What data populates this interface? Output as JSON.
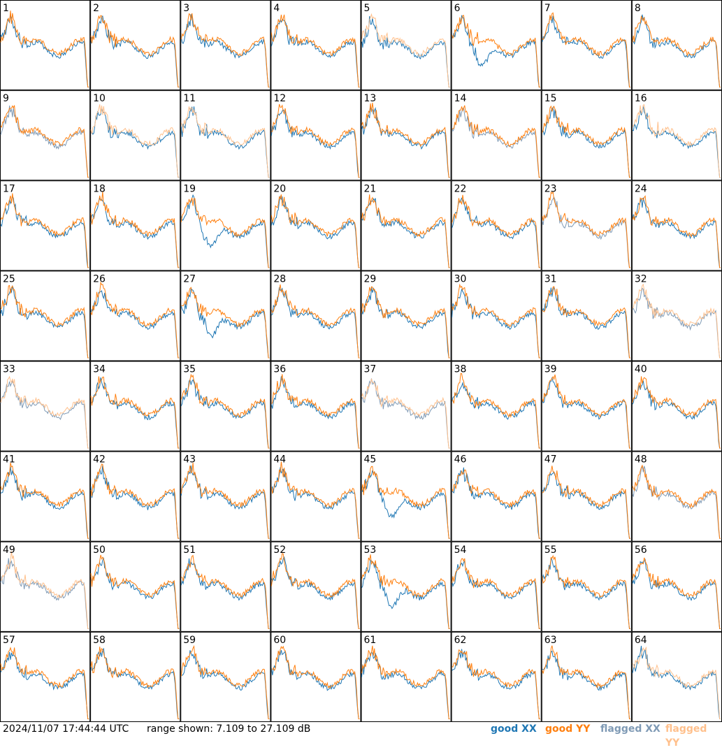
{
  "footer": {
    "timestamp": "2024/11/07 17:44:44 UTC",
    "range_label": "range shown: 7.109 to 27.109 dB"
  },
  "legend": [
    {
      "label": "good XX",
      "color": "#1f77b4"
    },
    {
      "label": "good YY",
      "color": "#ff7f0e"
    },
    {
      "label": "flagged XX",
      "color": "#7f9ab5"
    },
    {
      "label": "flagged YY",
      "color": "#ffc08c"
    }
  ],
  "chart_data": {
    "type": "line",
    "grid": {
      "rows": 8,
      "cols": 8
    },
    "ylim": [
      7.109,
      27.109
    ],
    "series_colors": {
      "good_xx": "#1f77b4",
      "good_yy": "#ff7f0e",
      "flagged_xx": "#7f9ab5",
      "flagged_yy": "#ffc08c"
    },
    "panels": [
      {
        "label": "1",
        "x": "good",
        "y": "good"
      },
      {
        "label": "2",
        "x": "good",
        "y": "good"
      },
      {
        "label": "3",
        "x": "good",
        "y": "good"
      },
      {
        "label": "4",
        "x": "good",
        "y": "good"
      },
      {
        "label": "5",
        "x": "good",
        "y": "flagged"
      },
      {
        "label": "6",
        "x": "good",
        "y": "good"
      },
      {
        "label": "7",
        "x": "good",
        "y": "good"
      },
      {
        "label": "8",
        "x": "good",
        "y": "good"
      },
      {
        "label": "9",
        "x": "flagged",
        "y": "good"
      },
      {
        "label": "10",
        "x": "good",
        "y": "flagged"
      },
      {
        "label": "11",
        "x": "good",
        "y": "flagged"
      },
      {
        "label": "12",
        "x": "good",
        "y": "good"
      },
      {
        "label": "13",
        "x": "good",
        "y": "good"
      },
      {
        "label": "14",
        "x": "flagged",
        "y": "good"
      },
      {
        "label": "15",
        "x": "good",
        "y": "good"
      },
      {
        "label": "16",
        "x": "good",
        "y": "flagged"
      },
      {
        "label": "17",
        "x": "good",
        "y": "good"
      },
      {
        "label": "18",
        "x": "good",
        "y": "good"
      },
      {
        "label": "19",
        "x": "good",
        "y": "good"
      },
      {
        "label": "20",
        "x": "good",
        "y": "good"
      },
      {
        "label": "21",
        "x": "good",
        "y": "good"
      },
      {
        "label": "22",
        "x": "good",
        "y": "good"
      },
      {
        "label": "23",
        "x": "flagged",
        "y": "good"
      },
      {
        "label": "24",
        "x": "good",
        "y": "good"
      },
      {
        "label": "25",
        "x": "good",
        "y": "good"
      },
      {
        "label": "26",
        "x": "good",
        "y": "good"
      },
      {
        "label": "27",
        "x": "good",
        "y": "good"
      },
      {
        "label": "28",
        "x": "good",
        "y": "good"
      },
      {
        "label": "29",
        "x": "good",
        "y": "good"
      },
      {
        "label": "30",
        "x": "good",
        "y": "good"
      },
      {
        "label": "31",
        "x": "good",
        "y": "good"
      },
      {
        "label": "32",
        "x": "flagged",
        "y": "flagged"
      },
      {
        "label": "33",
        "x": "flagged",
        "y": "flagged"
      },
      {
        "label": "34",
        "x": "good",
        "y": "good"
      },
      {
        "label": "35",
        "x": "good",
        "y": "good"
      },
      {
        "label": "36",
        "x": "good",
        "y": "good"
      },
      {
        "label": "37",
        "x": "flagged",
        "y": "flagged"
      },
      {
        "label": "38",
        "x": "good",
        "y": "good"
      },
      {
        "label": "39",
        "x": "good",
        "y": "good"
      },
      {
        "label": "40",
        "x": "good",
        "y": "good"
      },
      {
        "label": "41",
        "x": "good",
        "y": "good"
      },
      {
        "label": "42",
        "x": "good",
        "y": "good"
      },
      {
        "label": "43",
        "x": "good",
        "y": "good"
      },
      {
        "label": "44",
        "x": "good",
        "y": "good"
      },
      {
        "label": "45",
        "x": "good",
        "y": "good"
      },
      {
        "label": "46",
        "x": "good",
        "y": "good"
      },
      {
        "label": "47",
        "x": "good",
        "y": "good"
      },
      {
        "label": "48",
        "x": "flagged",
        "y": "good"
      },
      {
        "label": "49",
        "x": "flagged",
        "y": "flagged"
      },
      {
        "label": "50",
        "x": "good",
        "y": "good"
      },
      {
        "label": "51",
        "x": "good",
        "y": "good"
      },
      {
        "label": "52",
        "x": "good",
        "y": "good"
      },
      {
        "label": "53",
        "x": "good",
        "y": "good"
      },
      {
        "label": "54",
        "x": "good",
        "y": "good"
      },
      {
        "label": "55",
        "x": "good",
        "y": "good"
      },
      {
        "label": "56",
        "x": "good",
        "y": "good"
      },
      {
        "label": "57",
        "x": "good",
        "y": "good"
      },
      {
        "label": "58",
        "x": "good",
        "y": "good"
      },
      {
        "label": "59",
        "x": "good",
        "y": "good"
      },
      {
        "label": "60",
        "x": "good",
        "y": "good"
      },
      {
        "label": "61",
        "x": "good",
        "y": "good"
      },
      {
        "label": "62",
        "x": "good",
        "y": "good"
      },
      {
        "label": "63",
        "x": "good",
        "y": "good"
      },
      {
        "label": "64",
        "x": "good",
        "y": "flagged"
      }
    ]
  }
}
